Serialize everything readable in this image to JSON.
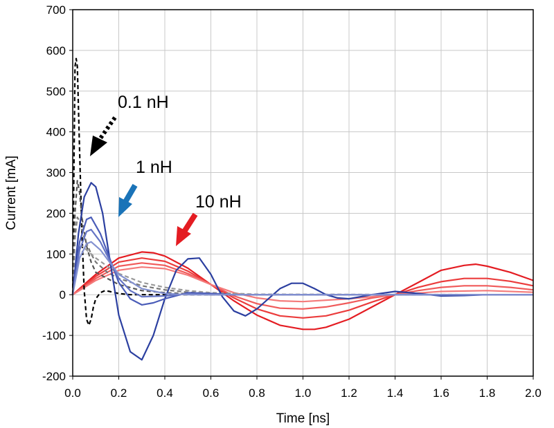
{
  "chart_data": {
    "type": "line",
    "xlabel": "Time [ns]",
    "ylabel": "Current [mA]",
    "xlim": [
      0,
      2.0
    ],
    "ylim": [
      -200,
      700
    ],
    "x_ticks": [
      "0.0",
      "0.2",
      "0.4",
      "0.6",
      "0.8",
      "1.0",
      "1.2",
      "1.4",
      "1.6",
      "1.8",
      "2.0"
    ],
    "y_ticks": [
      "-200",
      "-100",
      "0",
      "100",
      "200",
      "300",
      "400",
      "500",
      "600",
      "700"
    ],
    "grid": true,
    "colors": {
      "black": "#000000",
      "gray": "#777777",
      "blue": "#2b3fa0",
      "blue_light": "#6474c4",
      "red": "#e41c22",
      "red_light": "#f07070",
      "arrow_blue": "#1a73b8"
    },
    "annotations": [
      {
        "text": "0.1 nH",
        "color": "#000000",
        "style": "dotted"
      },
      {
        "text": "1 nH",
        "color": "#1a73b8",
        "style": "solid"
      },
      {
        "text": "10 nH",
        "color": "#e41c22",
        "style": "solid"
      }
    ],
    "series": [
      {
        "group": "0.1 nH",
        "color": "#000000",
        "dashed": true,
        "x": [
          0,
          0.005,
          0.01,
          0.015,
          0.02,
          0.03,
          0.04,
          0.05,
          0.06,
          0.07,
          0.08,
          0.09,
          0.1,
          0.12,
          0.14,
          0.16,
          0.2,
          0.25,
          0.3,
          0.4,
          0.6,
          1.0,
          1.5,
          2.0
        ],
        "y": [
          0,
          300,
          560,
          580,
          560,
          350,
          150,
          10,
          -60,
          -75,
          -60,
          -30,
          -10,
          5,
          10,
          8,
          3,
          0,
          0,
          0,
          0,
          0,
          0,
          0
        ]
      },
      {
        "group": "0.1 nH",
        "color": "#555555",
        "dashed": true,
        "x": [
          0,
          0.01,
          0.02,
          0.03,
          0.04,
          0.06,
          0.08,
          0.1,
          0.15,
          0.2,
          0.3,
          0.4,
          0.5,
          0.6,
          1.0,
          2.0
        ],
        "y": [
          0,
          200,
          280,
          250,
          190,
          120,
          80,
          55,
          40,
          25,
          10,
          5,
          2,
          0,
          0,
          0
        ]
      },
      {
        "group": "0.1 nH",
        "color": "#777777",
        "dashed": true,
        "x": [
          0,
          0.01,
          0.02,
          0.03,
          0.05,
          0.08,
          0.1,
          0.15,
          0.2,
          0.3,
          0.4,
          0.5,
          0.6,
          0.8,
          2.0
        ],
        "y": [
          0,
          140,
          190,
          180,
          140,
          100,
          80,
          55,
          40,
          22,
          12,
          6,
          3,
          0,
          0
        ]
      },
      {
        "group": "0.1 nH",
        "color": "#999999",
        "dashed": true,
        "x": [
          0,
          0.02,
          0.04,
          0.06,
          0.1,
          0.15,
          0.2,
          0.3,
          0.4,
          0.5,
          0.6,
          0.8,
          2.0
        ],
        "y": [
          0,
          110,
          120,
          110,
          90,
          70,
          52,
          30,
          18,
          10,
          5,
          1,
          0
        ]
      },
      {
        "group": "1 nH",
        "color": "#2b3fa0",
        "dashed": false,
        "x": [
          0,
          0.025,
          0.05,
          0.08,
          0.1,
          0.13,
          0.16,
          0.2,
          0.25,
          0.3,
          0.35,
          0.4,
          0.45,
          0.5,
          0.55,
          0.6,
          0.65,
          0.7,
          0.75,
          0.8,
          0.85,
          0.9,
          0.95,
          1.0,
          1.05,
          1.1,
          1.15,
          1.2,
          1.3,
          1.4,
          1.5,
          1.6,
          1.7,
          1.8,
          1.9,
          2.0
        ],
        "y": [
          0,
          150,
          240,
          275,
          265,
          200,
          90,
          -50,
          -140,
          -160,
          -100,
          -10,
          60,
          88,
          90,
          50,
          -5,
          -40,
          -52,
          -35,
          -10,
          15,
          28,
          28,
          15,
          0,
          -8,
          -10,
          0,
          8,
          3,
          -3,
          -2,
          0,
          0,
          0
        ]
      },
      {
        "group": "1 nH",
        "color": "#4a5cb8",
        "dashed": false,
        "x": [
          0,
          0.03,
          0.06,
          0.08,
          0.12,
          0.16,
          0.2,
          0.25,
          0.3,
          0.35,
          0.4,
          0.5,
          0.6,
          0.7,
          0.8,
          1.0,
          2.0
        ],
        "y": [
          0,
          130,
          185,
          190,
          150,
          90,
          30,
          -10,
          -25,
          -20,
          -10,
          5,
          3,
          0,
          0,
          0,
          0
        ]
      },
      {
        "group": "1 nH",
        "color": "#6474c4",
        "dashed": false,
        "x": [
          0,
          0.03,
          0.06,
          0.08,
          0.12,
          0.16,
          0.2,
          0.25,
          0.3,
          0.4,
          0.5,
          0.6,
          0.8,
          2.0
        ],
        "y": [
          0,
          110,
          155,
          160,
          130,
          85,
          40,
          10,
          -5,
          -3,
          2,
          0,
          0,
          0
        ]
      },
      {
        "group": "1 nH",
        "color": "#8290d0",
        "dashed": false,
        "x": [
          0,
          0.03,
          0.06,
          0.08,
          0.12,
          0.16,
          0.2,
          0.3,
          0.4,
          0.5,
          0.6,
          0.8,
          2.0
        ],
        "y": [
          0,
          90,
          125,
          130,
          110,
          80,
          50,
          15,
          3,
          0,
          0,
          0,
          0
        ]
      },
      {
        "group": "10 nH",
        "color": "#e41c22",
        "dashed": false,
        "x": [
          0,
          0.1,
          0.2,
          0.3,
          0.35,
          0.4,
          0.5,
          0.6,
          0.7,
          0.8,
          0.9,
          1.0,
          1.05,
          1.1,
          1.2,
          1.3,
          1.4,
          1.5,
          1.6,
          1.7,
          1.75,
          1.8,
          1.9,
          2.0
        ],
        "y": [
          0,
          50,
          90,
          105,
          103,
          95,
          65,
          25,
          -15,
          -50,
          -75,
          -85,
          -85,
          -80,
          -60,
          -30,
          0,
          30,
          60,
          72,
          75,
          70,
          55,
          35
        ]
      },
      {
        "group": "10 nH",
        "color": "#eb3c3c",
        "dashed": false,
        "x": [
          0,
          0.1,
          0.2,
          0.3,
          0.4,
          0.5,
          0.6,
          0.7,
          0.8,
          0.9,
          1.0,
          1.1,
          1.2,
          1.3,
          1.4,
          1.5,
          1.6,
          1.7,
          1.8,
          1.9,
          2.0
        ],
        "y": [
          0,
          45,
          80,
          90,
          82,
          58,
          25,
          -8,
          -35,
          -52,
          -57,
          -52,
          -38,
          -18,
          0,
          18,
          32,
          40,
          40,
          33,
          22
        ]
      },
      {
        "group": "10 nH",
        "color": "#f05a5a",
        "dashed": false,
        "x": [
          0,
          0.1,
          0.2,
          0.3,
          0.4,
          0.5,
          0.6,
          0.7,
          0.8,
          0.9,
          1.0,
          1.1,
          1.2,
          1.3,
          1.4,
          1.5,
          1.6,
          1.7,
          1.8,
          1.9,
          2.0
        ],
        "y": [
          0,
          40,
          70,
          78,
          72,
          52,
          25,
          -3,
          -22,
          -33,
          -35,
          -30,
          -20,
          -8,
          0,
          10,
          18,
          22,
          22,
          18,
          12
        ]
      },
      {
        "group": "10 nH",
        "color": "#f47a7a",
        "dashed": false,
        "x": [
          0,
          0.1,
          0.2,
          0.3,
          0.4,
          0.5,
          0.6,
          0.7,
          0.8,
          0.9,
          1.0,
          1.2,
          1.4,
          1.6,
          1.8,
          2.0
        ],
        "y": [
          0,
          35,
          60,
          68,
          64,
          48,
          25,
          5,
          -8,
          -15,
          -17,
          -10,
          0,
          8,
          10,
          6
        ]
      }
    ]
  }
}
